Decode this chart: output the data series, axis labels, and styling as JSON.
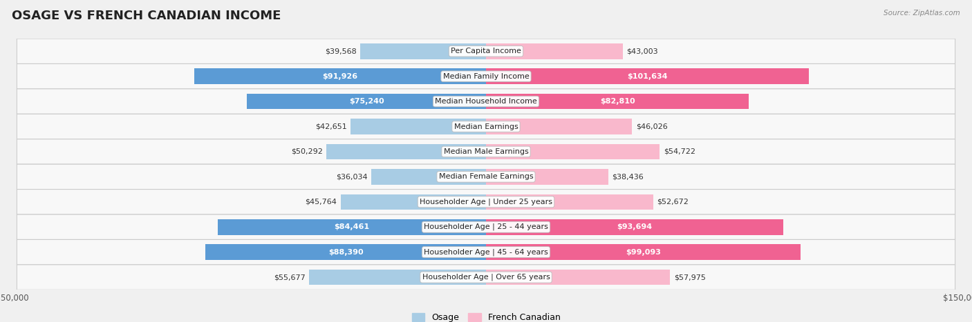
{
  "title": "OSAGE VS FRENCH CANADIAN INCOME",
  "source": "Source: ZipAtlas.com",
  "categories": [
    "Per Capita Income",
    "Median Family Income",
    "Median Household Income",
    "Median Earnings",
    "Median Male Earnings",
    "Median Female Earnings",
    "Householder Age | Under 25 years",
    "Householder Age | 25 - 44 years",
    "Householder Age | 45 - 64 years",
    "Householder Age | Over 65 years"
  ],
  "osage_values": [
    39568,
    91926,
    75240,
    42651,
    50292,
    36034,
    45764,
    84461,
    88390,
    55677
  ],
  "french_values": [
    43003,
    101634,
    82810,
    46026,
    54722,
    38436,
    52672,
    93694,
    99093,
    57975
  ],
  "osage_light_color": "#a8cce4",
  "osage_dark_color": "#5b9bd5",
  "french_light_color": "#f9b8cc",
  "french_dark_color": "#f06292",
  "osage_label": "Osage",
  "french_label": "French Canadian",
  "max_value": 150000,
  "background_color": "#f0f0f0",
  "row_light_color": "#ffffff",
  "row_dark_color": "#e8e8e8",
  "bar_height": 0.62,
  "title_fontsize": 13,
  "label_fontsize": 8,
  "value_fontsize": 8,
  "legend_fontsize": 9,
  "axis_fontsize": 8.5,
  "large_threshold": 65000
}
